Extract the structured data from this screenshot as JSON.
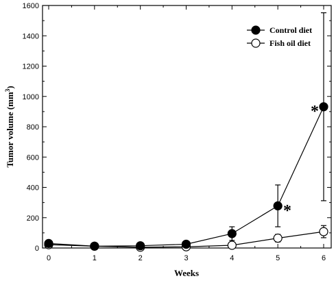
{
  "chart_data": {
    "type": "line",
    "title": "",
    "xlabel": "Weeks",
    "ylabel": "Tumor volume (mm",
    "ylabel_sup": "3",
    "ylabel_close": ")",
    "xlim": [
      0,
      6
    ],
    "ylim": [
      0,
      1600
    ],
    "x_ticks": [
      "0",
      "1",
      "2",
      "3",
      "4",
      "5",
      "6"
    ],
    "y_ticks": [
      "0",
      "200",
      "400",
      "600",
      "800",
      "1000",
      "1200",
      "1400",
      "1600"
    ],
    "grid": false,
    "legend_position": "top-right",
    "x": [
      0,
      1,
      2,
      3,
      4,
      5,
      6
    ],
    "series": [
      {
        "name": "Control diet",
        "marker": "filled-circle",
        "color": "#000000",
        "values": [
          30,
          12,
          15,
          25,
          95,
          278,
          932
        ],
        "error": [
          10,
          5,
          8,
          8,
          45,
          138,
          620
        ]
      },
      {
        "name": "Fish oil diet",
        "marker": "open-circle",
        "color": "#000000",
        "values": [
          22,
          12,
          5,
          8,
          18,
          65,
          108
        ],
        "error": [
          10,
          5,
          5,
          5,
          15,
          25,
          40
        ]
      }
    ],
    "annotations": [
      {
        "text": "*",
        "near_week": 6
      },
      {
        "text": "*",
        "near_week": 5
      }
    ]
  }
}
